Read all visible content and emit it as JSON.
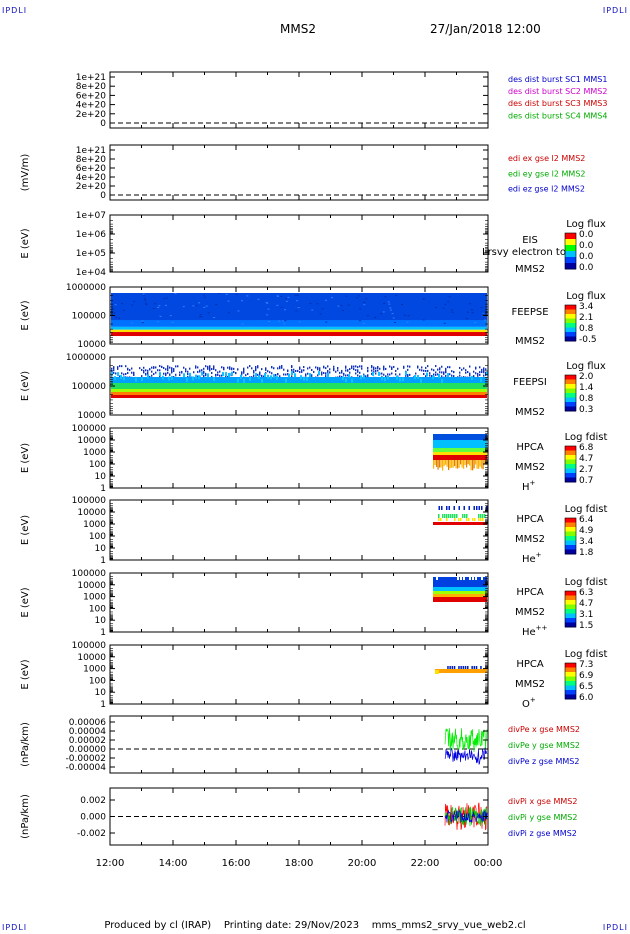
{
  "corner_mark": "IPDLI",
  "header": {
    "title": "MMS2",
    "datetime": "27/Jan/2018 12:00"
  },
  "footer": {
    "produced_by": "Produced by cl (IRAP)",
    "printing_date": "Printing date: 29/Nov/2023",
    "script": "mms_mms2_srvy_vue_web2.cl"
  },
  "colors": {
    "rainbow": [
      "#0000a0",
      "#0040ff",
      "#00c0ff",
      "#00ff80",
      "#80ff00",
      "#ffff00",
      "#ff8000",
      "#ff0000",
      "#b00000"
    ]
  },
  "chart_data": [
    {
      "id": "p1",
      "type": "line",
      "ylabel": "",
      "yticks": [
        "1e+21",
        "8e+20",
        "6e+20",
        "4e+20",
        "2e+20",
        "0"
      ],
      "dashed_zero": true,
      "legend": [
        {
          "text": "des dist burst SC1 MMS1",
          "color": "#0000cc"
        },
        {
          "text": "des dist burst SC2 MMS2",
          "color": "#cc00cc"
        },
        {
          "text": "des dist burst SC3 MMS3",
          "color": "#cc0000"
        },
        {
          "text": "des dist burst SC4 MMS4",
          "color": "#00aa00"
        }
      ]
    },
    {
      "id": "p2",
      "type": "line",
      "ylabel": "(mV/m)",
      "yticks": [
        "1e+21",
        "8e+20",
        "6e+20",
        "4e+20",
        "2e+20",
        "0"
      ],
      "dashed_zero": true,
      "legend": [
        {
          "text": "edi ex gse l2 MMS2",
          "color": "#cc0000"
        },
        {
          "text": "edi ey gse l2 MMS2",
          "color": "#00aa00"
        },
        {
          "text": "edi ez gse l2 MMS2",
          "color": "#0000cc"
        }
      ]
    },
    {
      "id": "p3",
      "type": "heatmap",
      "ylabel": "E (eV)",
      "yticks": [
        "1e+07",
        "1e+06",
        "1e+05",
        "1e+04"
      ],
      "instrument": [
        "EIS",
        "MMS2"
      ],
      "overlay_text": "Lrsvy electron to",
      "cbar_title": "Log flux",
      "cbar_ticks": [
        "0.0",
        "0.0",
        "0.0",
        "0.0"
      ]
    },
    {
      "id": "p4",
      "type": "heatmap",
      "ylabel": "E (eV)",
      "yticks": [
        "1000000",
        "100000",
        "10000"
      ],
      "instrument": [
        "FEEPSE",
        "MMS2"
      ],
      "cbar_title": "Log flux",
      "cbar_ticks": [
        "3.4",
        "2.1",
        "0.8",
        "-0.5"
      ]
    },
    {
      "id": "p5",
      "type": "heatmap",
      "ylabel": "E (eV)",
      "yticks": [
        "1000000",
        "100000",
        "10000"
      ],
      "instrument": [
        "FEEPSI",
        "MMS2"
      ],
      "cbar_title": "Log flux",
      "cbar_ticks": [
        "2.0",
        "1.4",
        "0.8",
        "0.3"
      ]
    },
    {
      "id": "p6",
      "type": "heatmap",
      "ylabel": "E (eV)",
      "yticks": [
        "100000",
        "10000",
        "1000",
        "100",
        "10",
        "1"
      ],
      "instrument": [
        "HPCA",
        "MMS2"
      ],
      "species": "H",
      "species_sup": "+",
      "cbar_title": "Log fdist",
      "cbar_ticks": [
        "6.8",
        "4.7",
        "2.7",
        "0.7"
      ]
    },
    {
      "id": "p7",
      "type": "heatmap",
      "ylabel": "E (eV)",
      "yticks": [
        "100000",
        "10000",
        "1000",
        "100",
        "10",
        "1"
      ],
      "instrument": [
        "HPCA",
        "MMS2"
      ],
      "species": "He",
      "species_sup": "+",
      "cbar_title": "Log fdist",
      "cbar_ticks": [
        "6.4",
        "4.9",
        "3.4",
        "1.8"
      ]
    },
    {
      "id": "p8",
      "type": "heatmap",
      "ylabel": "E (eV)",
      "yticks": [
        "100000",
        "10000",
        "1000",
        "100",
        "10",
        "1"
      ],
      "instrument": [
        "HPCA",
        "MMS2"
      ],
      "species": "He",
      "species_sup": "++",
      "cbar_title": "Log fdist",
      "cbar_ticks": [
        "6.3",
        "4.7",
        "3.1",
        "1.5"
      ]
    },
    {
      "id": "p9",
      "type": "heatmap",
      "ylabel": "E (eV)",
      "yticks": [
        "100000",
        "10000",
        "1000",
        "100",
        "10",
        "1"
      ],
      "instrument": [
        "HPCA",
        "MMS2"
      ],
      "species": "O",
      "species_sup": "+",
      "cbar_title": "Log fdist",
      "cbar_ticks": [
        "7.3",
        "6.9",
        "6.5",
        "6.0"
      ]
    },
    {
      "id": "p10",
      "type": "line",
      "ylabel": "(nPa/km)",
      "yticks": [
        "0.00006",
        "0.00004",
        "0.00002",
        "0.00000",
        "-0.00002",
        "-0.00004"
      ],
      "dashed_zero": true,
      "legend": [
        {
          "text": "divPe x gse MMS2",
          "color": "#cc0000"
        },
        {
          "text": "divPe y gse MMS2",
          "color": "#00aa00"
        },
        {
          "text": "divPe z gse MMS2",
          "color": "#0000cc"
        }
      ]
    },
    {
      "id": "p11",
      "type": "line",
      "ylabel": "(nPa/km)",
      "yticks": [
        "0.002",
        "0.000",
        "-0.002"
      ],
      "dashed_zero": true,
      "legend": [
        {
          "text": "divPi x gse MMS2",
          "color": "#cc0000"
        },
        {
          "text": "divPi y gse MMS2",
          "color": "#00aa00"
        },
        {
          "text": "divPi z gse MMS2",
          "color": "#0000cc"
        }
      ]
    }
  ],
  "xaxis": {
    "ticks": [
      "12:00",
      "14:00",
      "16:00",
      "18:00",
      "20:00",
      "22:00",
      "00:00"
    ]
  }
}
